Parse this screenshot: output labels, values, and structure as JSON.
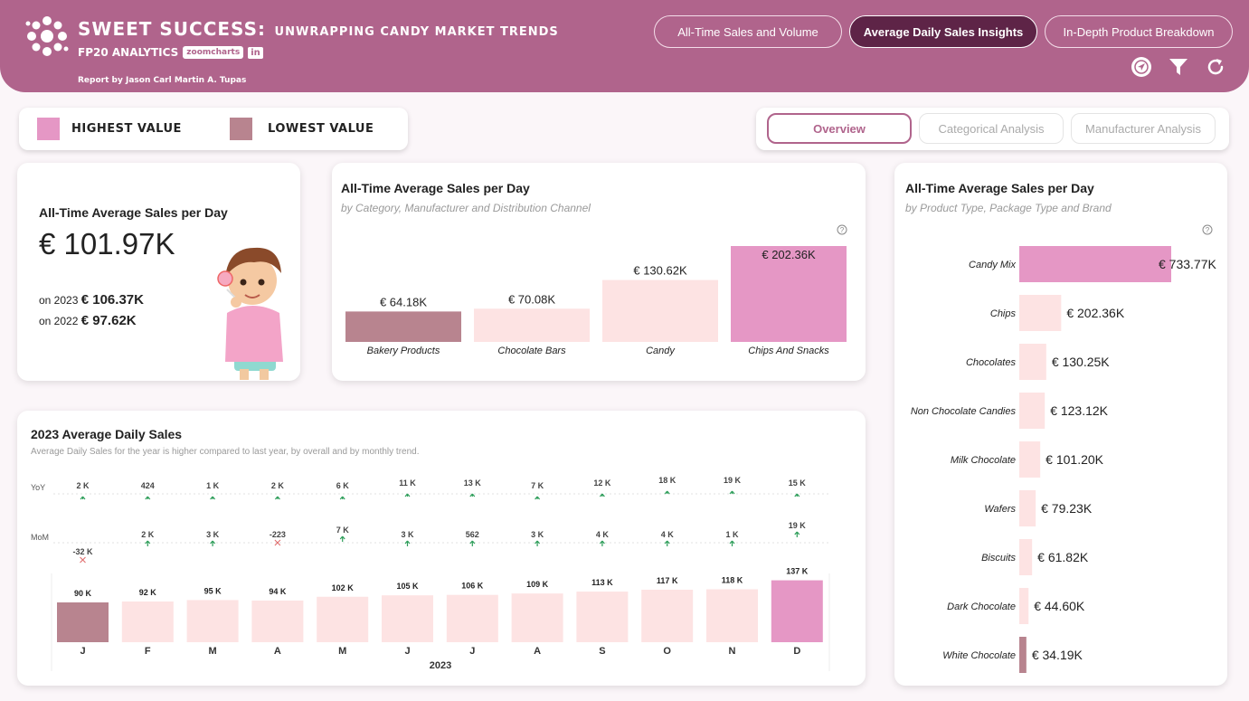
{
  "header": {
    "title_main": "SWEET SUCCESS:",
    "title_sub": "UNWRAPPING CANDY MARKET TRENDS",
    "brand": "FP20 ANALYTICS",
    "partner": "zoomcharts",
    "linkedin": "in",
    "byline": "Report by Jason Carl Martin A. Tupas",
    "nav": [
      "All-Time Sales and Volume",
      "Average Daily Sales Insights",
      "In-Depth Product Breakdown"
    ],
    "icons": [
      "navigate-icon",
      "filter-icon",
      "refresh-icon"
    ]
  },
  "legend": {
    "highest_label": "HIGHEST VALUE",
    "lowest_label": "LOWEST VALUE",
    "highest_color": "#e597c5",
    "lowest_color": "#b8848f"
  },
  "tabs": [
    "Overview",
    "Categorical Analysis",
    "Manufacturer Analysis"
  ],
  "kpi": {
    "title": "All-Time Average Sales per Day",
    "value": "€ 101.97K",
    "y2023_label": "on 2023",
    "y2023_value": "€ 106.37K",
    "y2022_label": "on 2022",
    "y2022_value": "€ 97.62K"
  },
  "chart_data": [
    {
      "type": "bar",
      "title": "All-Time Average Sales per Day",
      "subtitle": "by Category, Manufacturer and Distribution Channel",
      "categories": [
        "Bakery Products",
        "Chocolate Bars",
        "Candy",
        "Chips And Snacks"
      ],
      "values": [
        64.18,
        70.08,
        130.62,
        202.36
      ],
      "labels": [
        "€ 64.18K",
        "€ 70.08K",
        "€ 130.62K",
        "€ 202.36K"
      ],
      "colors": [
        "#b8848f",
        "#fde3e3",
        "#fde3e3",
        "#e597c5"
      ]
    },
    {
      "type": "bar",
      "orientation": "horizontal",
      "title": "All-Time Average Sales per Day",
      "subtitle": "by Product Type, Package Type and Brand",
      "categories": [
        "Candy Mix",
        "Chips",
        "Chocolates",
        "Non Chocolate Candies",
        "Milk Chocolate",
        "Wafers",
        "Biscuits",
        "Dark Chocolate",
        "White Chocolate"
      ],
      "values": [
        733.77,
        202.36,
        130.25,
        123.12,
        101.2,
        79.23,
        61.82,
        44.6,
        34.19
      ],
      "labels": [
        "€ 733.77K",
        "€ 202.36K",
        "€ 130.25K",
        "€ 123.12K",
        "€ 101.20K",
        "€ 79.23K",
        "€ 61.82K",
        "€ 44.60K",
        "€ 34.19K"
      ],
      "colors": [
        "#e597c5",
        "#fde3e3",
        "#fde3e3",
        "#fde3e3",
        "#fde3e3",
        "#fde3e3",
        "#fde3e3",
        "#fde3e3",
        "#b8848f"
      ]
    },
    {
      "type": "bar",
      "title": "2023 Average Daily Sales",
      "subtitle": "Average Daily Sales for the year is higher compared to last year, by overall and by monthly trend.",
      "xlabel": "2023",
      "categories": [
        "J",
        "F",
        "M",
        "A",
        "M",
        "J",
        "J",
        "A",
        "S",
        "O",
        "N",
        "D"
      ],
      "values": [
        90,
        92,
        95,
        94,
        102,
        105,
        106,
        109,
        113,
        117,
        118,
        137
      ],
      "labels": [
        "90 K",
        "92 K",
        "95 K",
        "94 K",
        "102 K",
        "105 K",
        "106 K",
        "109 K",
        "113 K",
        "117 K",
        "118 K",
        "137 K"
      ],
      "colors": [
        "#b8848f",
        "#fde3e3",
        "#fde3e3",
        "#fde3e3",
        "#fde3e3",
        "#fde3e3",
        "#fde3e3",
        "#fde3e3",
        "#fde3e3",
        "#fde3e3",
        "#fde3e3",
        "#e597c5"
      ],
      "yoy_label": "YoY",
      "yoy": [
        "2 K",
        "424",
        "1 K",
        "2 K",
        "6 K",
        "11 K",
        "13 K",
        "7 K",
        "12 K",
        "18 K",
        "19 K",
        "15 K"
      ],
      "yoy_level": [
        0,
        0,
        0,
        0,
        0,
        1,
        1,
        0,
        1,
        2,
        2,
        1
      ],
      "mom_label": "MoM",
      "mom": [
        "-32 K",
        "2 K",
        "3 K",
        "-223",
        "7 K",
        "3 K",
        "562",
        "3 K",
        "4 K",
        "4 K",
        "1 K",
        "19 K"
      ],
      "mom_level": [
        -1,
        0,
        0,
        0,
        1,
        0,
        0,
        0,
        0,
        0,
        0,
        2
      ]
    }
  ]
}
